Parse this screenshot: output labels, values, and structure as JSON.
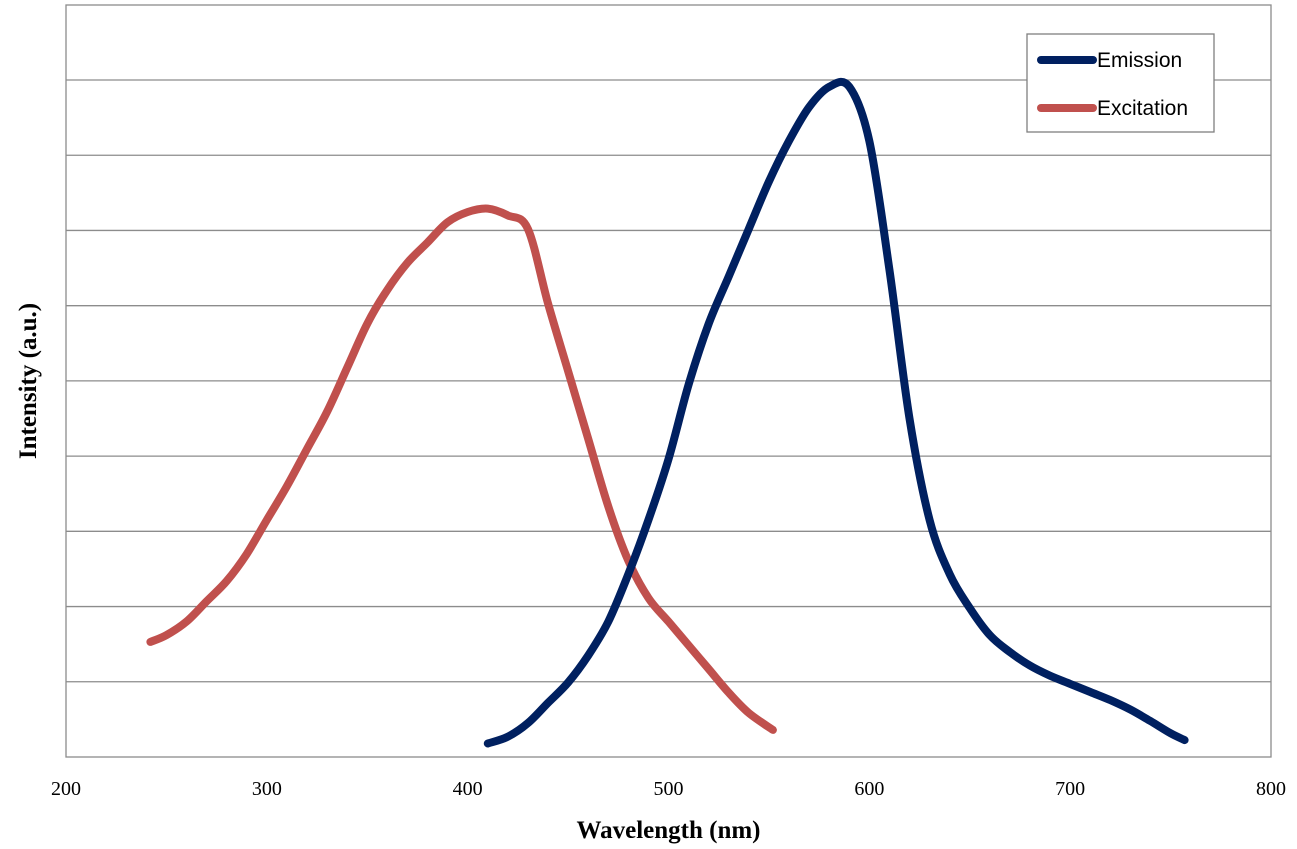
{
  "chart_data": {
    "type": "line",
    "title": "",
    "xlabel": "Wavelength (nm)",
    "ylabel": "Intensity (a.u.)",
    "xlim": [
      200,
      800
    ],
    "ylim": [
      0,
      100
    ],
    "x_ticks": [
      200,
      300,
      400,
      500,
      600,
      700,
      800
    ],
    "y_ticks_labeled": false,
    "grid": "horizontal",
    "legend": "top-right",
    "series": [
      {
        "name": "Emission",
        "color": "#002060",
        "points": [
          [
            410,
            2
          ],
          [
            420,
            3
          ],
          [
            430,
            5
          ],
          [
            440,
            8
          ],
          [
            450,
            11
          ],
          [
            460,
            15
          ],
          [
            470,
            20
          ],
          [
            480,
            27
          ],
          [
            490,
            35
          ],
          [
            500,
            44
          ],
          [
            510,
            55
          ],
          [
            520,
            64
          ],
          [
            530,
            71
          ],
          [
            540,
            78
          ],
          [
            550,
            85
          ],
          [
            560,
            91
          ],
          [
            570,
            96
          ],
          [
            580,
            99
          ],
          [
            590,
            99
          ],
          [
            600,
            91
          ],
          [
            610,
            72
          ],
          [
            620,
            50
          ],
          [
            630,
            35
          ],
          [
            640,
            27
          ],
          [
            650,
            22
          ],
          [
            660,
            18
          ],
          [
            670,
            15.5
          ],
          [
            680,
            13.5
          ],
          [
            690,
            12
          ],
          [
            700,
            10.8
          ],
          [
            710,
            9.6
          ],
          [
            720,
            8.4
          ],
          [
            730,
            7
          ],
          [
            740,
            5.3
          ],
          [
            750,
            3.5
          ],
          [
            757,
            2.5
          ]
        ]
      },
      {
        "name": "Excitation",
        "color": "#c0504d",
        "points": [
          [
            242,
            17
          ],
          [
            250,
            18
          ],
          [
            260,
            20
          ],
          [
            270,
            23
          ],
          [
            280,
            26
          ],
          [
            290,
            30
          ],
          [
            300,
            35
          ],
          [
            310,
            40
          ],
          [
            320,
            45.5
          ],
          [
            330,
            51
          ],
          [
            340,
            57.5
          ],
          [
            350,
            64
          ],
          [
            360,
            69
          ],
          [
            370,
            73
          ],
          [
            380,
            76
          ],
          [
            390,
            79
          ],
          [
            400,
            80.5
          ],
          [
            410,
            81
          ],
          [
            420,
            80
          ],
          [
            430,
            78
          ],
          [
            440,
            67
          ],
          [
            450,
            57
          ],
          [
            460,
            47
          ],
          [
            470,
            37
          ],
          [
            480,
            29
          ],
          [
            490,
            23.5
          ],
          [
            500,
            20
          ],
          [
            510,
            16.5
          ],
          [
            520,
            13
          ],
          [
            530,
            9.5
          ],
          [
            540,
            6.5
          ],
          [
            552,
            4
          ]
        ]
      }
    ]
  }
}
